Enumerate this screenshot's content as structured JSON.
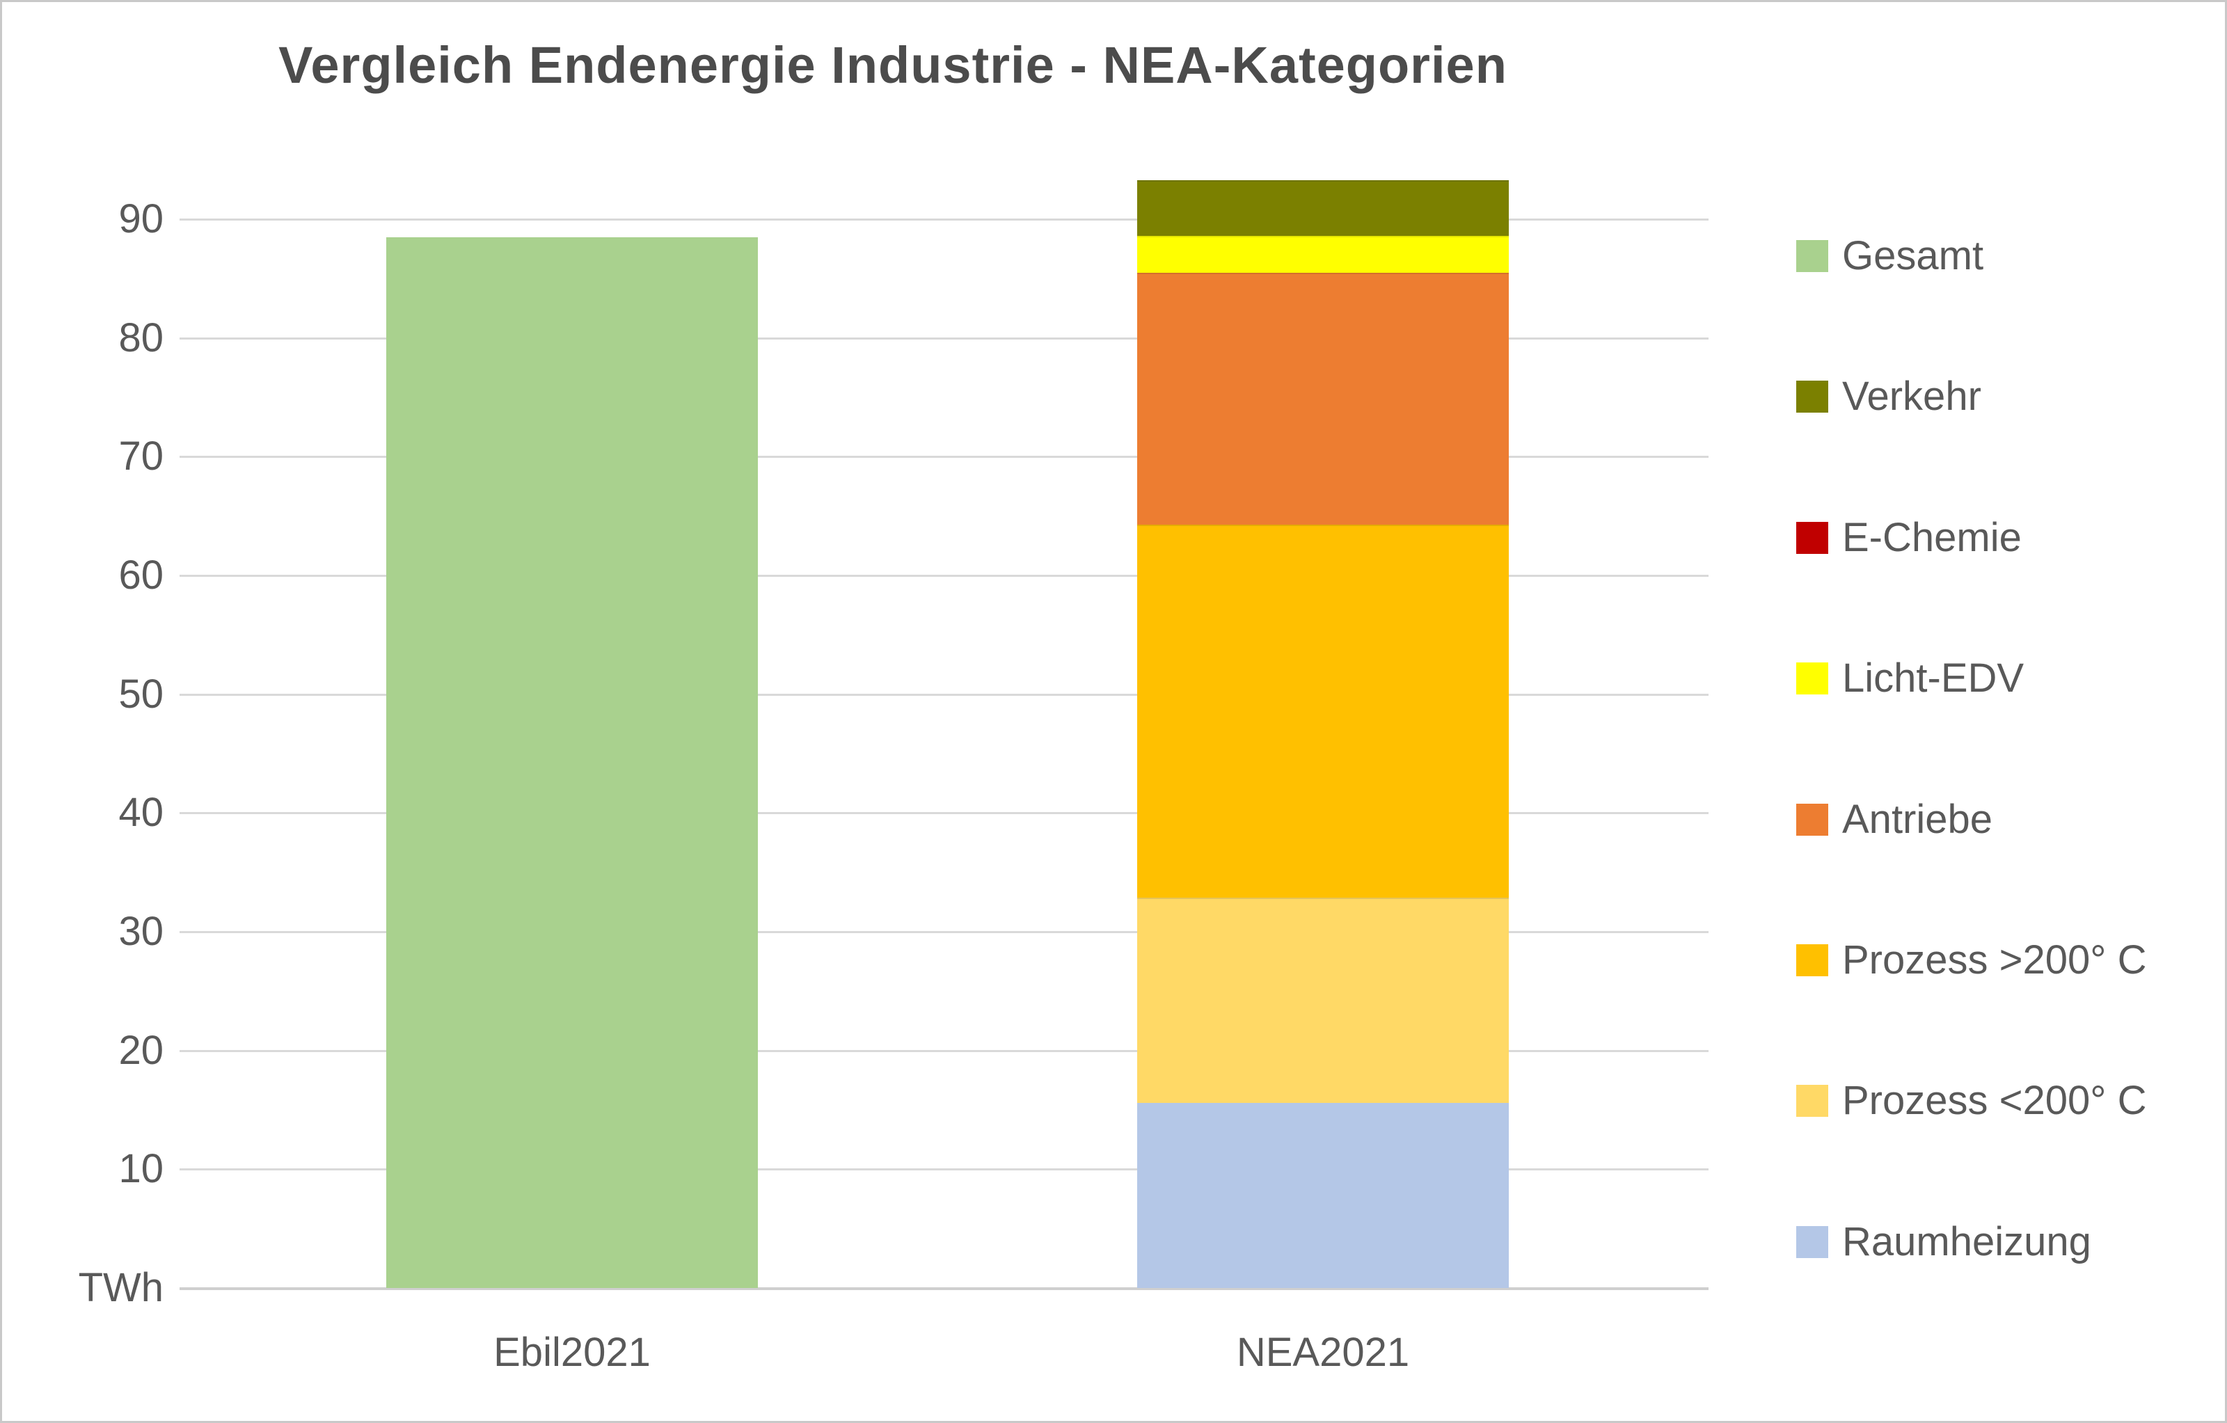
{
  "title": "Vergleich Endenergie Industrie - NEA-Kategorien",
  "chart_data": {
    "type": "bar",
    "stacked": true,
    "title": "Vergleich Endenergie Industrie - NEA-Kategorien",
    "xlabel": "",
    "ylabel": "TWh",
    "unit_label": "TWh",
    "ylim": [
      0,
      95
    ],
    "yticks": [
      10,
      20,
      30,
      40,
      50,
      60,
      70,
      80,
      90
    ],
    "grid": true,
    "legend_position": "right",
    "categories": [
      "Ebil2021",
      "NEA2021"
    ],
    "series": [
      {
        "name": "Gesamt",
        "color": "#A9D18E",
        "values": [
          88.5,
          0
        ]
      },
      {
        "name": "Raumheizung",
        "color": "#B4C7E7",
        "values": [
          0,
          15.6
        ]
      },
      {
        "name": "Prozess <200° C",
        "color": "#FFD966",
        "values": [
          0,
          17.3
        ]
      },
      {
        "name": "Prozess >200° C",
        "color": "#FFC000",
        "values": [
          0,
          31.4
        ]
      },
      {
        "name": "Antriebe",
        "color": "#ED7D31",
        "values": [
          0,
          21.2
        ]
      },
      {
        "name": "Licht-EDV",
        "color": "#FFFF00",
        "values": [
          0,
          3.1
        ]
      },
      {
        "name": "E-Chemie",
        "color": "#C00000",
        "values": [
          0,
          0
        ]
      },
      {
        "name": "Verkehr",
        "color": "#7B8000",
        "values": [
          0,
          4.7
        ]
      }
    ],
    "totals": {
      "Ebil2021": 88.5,
      "NEA2021": 93.3
    },
    "legend": [
      {
        "label": "Gesamt",
        "color": "#A9D18E"
      },
      {
        "label": "Verkehr",
        "color": "#7B8000"
      },
      {
        "label": "E-Chemie",
        "color": "#C00000"
      },
      {
        "label": "Licht-EDV",
        "color": "#FFFF00"
      },
      {
        "label": "Antriebe",
        "color": "#ED7D31"
      },
      {
        "label": "Prozess >200° C",
        "color": "#FFC000"
      },
      {
        "label": "Prozess <200° C",
        "color": "#FFD966"
      },
      {
        "label": "Raumheizung",
        "color": "#B4C7E7"
      }
    ]
  },
  "colors": {
    "text": "#595959",
    "title_text": "#4C4C4C",
    "gridline": "#D9D9D9",
    "figure_border": "#C9C9C9",
    "background": "#FFFFFF"
  }
}
